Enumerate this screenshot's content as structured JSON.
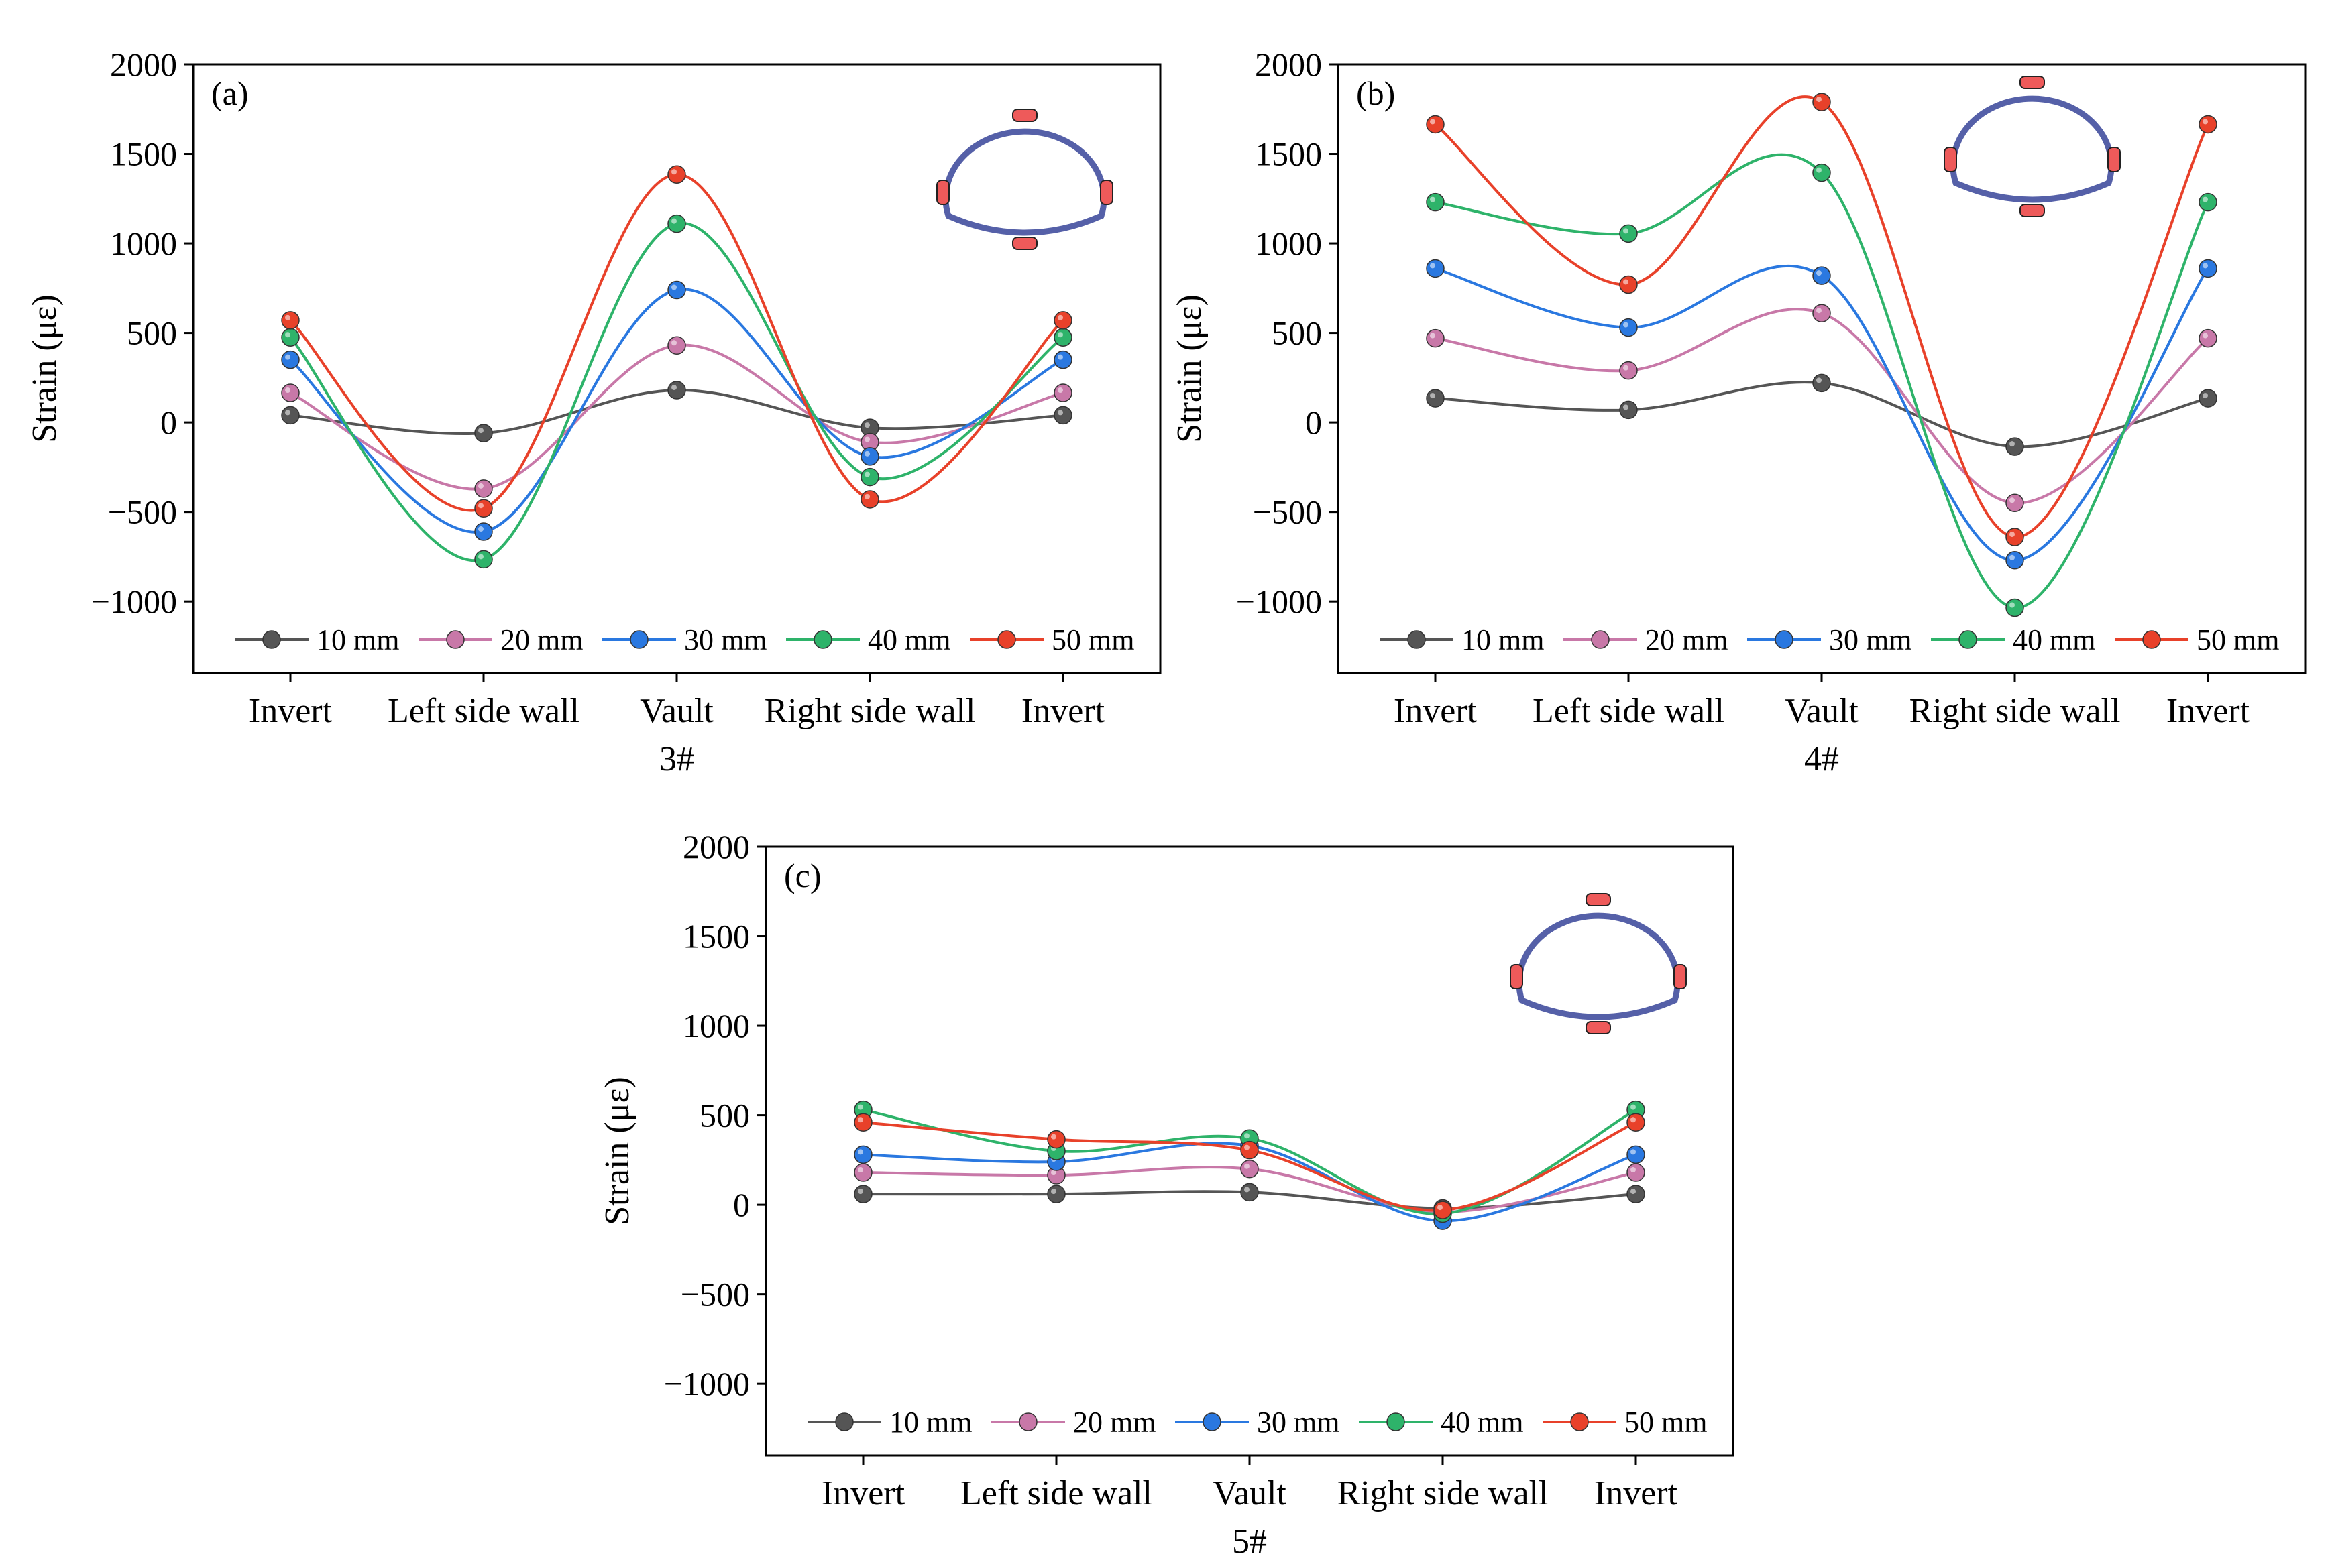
{
  "chart_data": [
    {
      "type": "line",
      "panel_label": "(a)",
      "xlabel": "3#",
      "ylabel": "Strain  (με)",
      "categories": [
        "Invert",
        "Left side wall",
        "Vault",
        "Right side wall",
        "Invert"
      ],
      "ylim": [
        -1400,
        2000
      ],
      "yticks": [
        2000,
        1500,
        1000,
        500,
        0,
        -500,
        -1000
      ],
      "ytick_labels": [
        "2000",
        "1500",
        "1000",
        "500",
        "0",
        "−500",
        "−1000"
      ],
      "grid": false,
      "legend_position": "bottom",
      "series": [
        {
          "name": "10 mm",
          "color": "#555555",
          "values": [
            40,
            -60,
            180,
            -30,
            40
          ]
        },
        {
          "name": "20 mm",
          "color": "#c878a8",
          "values": [
            165,
            -370,
            430,
            -110,
            165
          ]
        },
        {
          "name": "30 mm",
          "color": "#2a78e0",
          "values": [
            350,
            -610,
            740,
            -190,
            350
          ]
        },
        {
          "name": "40 mm",
          "color": "#2eb36a",
          "values": [
            475,
            -765,
            1110,
            -305,
            475
          ]
        },
        {
          "name": "50 mm",
          "color": "#e8412a",
          "values": [
            570,
            -480,
            1385,
            -430,
            570
          ]
        }
      ],
      "inset_icon": "tunnel-cross-section-icon"
    },
    {
      "type": "line",
      "panel_label": "(b)",
      "xlabel": "4#",
      "ylabel": "Strain  (με)",
      "categories": [
        "Invert",
        "Left side wall",
        "Vault",
        "Right side wall",
        "Invert"
      ],
      "ylim": [
        -1400,
        2000
      ],
      "yticks": [
        2000,
        1500,
        1000,
        500,
        0,
        -500,
        -1000
      ],
      "ytick_labels": [
        "2000",
        "1500",
        "1000",
        "500",
        "0",
        "−500",
        "−1000"
      ],
      "grid": false,
      "legend_position": "bottom",
      "series": [
        {
          "name": "10 mm",
          "color": "#555555",
          "values": [
            135,
            70,
            220,
            -135,
            135
          ]
        },
        {
          "name": "20 mm",
          "color": "#c878a8",
          "values": [
            470,
            290,
            610,
            -450,
            470
          ]
        },
        {
          "name": "30 mm",
          "color": "#2a78e0",
          "values": [
            860,
            530,
            820,
            -770,
            860
          ]
        },
        {
          "name": "40 mm",
          "color": "#2eb36a",
          "values": [
            1230,
            1055,
            1395,
            -1035,
            1230
          ]
        },
        {
          "name": "50 mm",
          "color": "#e8412a",
          "values": [
            1665,
            770,
            1790,
            -640,
            1665
          ]
        }
      ],
      "inset_icon": "tunnel-cross-section-icon"
    },
    {
      "type": "line",
      "panel_label": "(c)",
      "xlabel": "5#",
      "ylabel": "Strain  (με)",
      "categories": [
        "Invert",
        "Left side wall",
        "Vault",
        "Right side wall",
        "Invert"
      ],
      "ylim": [
        -1400,
        2000
      ],
      "yticks": [
        2000,
        1500,
        1000,
        500,
        0,
        -500,
        -1000
      ],
      "ytick_labels": [
        "2000",
        "1500",
        "1000",
        "500",
        "0",
        "−500",
        "−1000"
      ],
      "grid": false,
      "legend_position": "bottom",
      "series": [
        {
          "name": "10 mm",
          "color": "#555555",
          "values": [
            60,
            60,
            70,
            -20,
            60
          ]
        },
        {
          "name": "20 mm",
          "color": "#c878a8",
          "values": [
            180,
            165,
            200,
            -40,
            180
          ]
        },
        {
          "name": "30 mm",
          "color": "#2a78e0",
          "values": [
            280,
            240,
            330,
            -90,
            280
          ]
        },
        {
          "name": "40 mm",
          "color": "#2eb36a",
          "values": [
            530,
            300,
            370,
            -50,
            530
          ]
        },
        {
          "name": "50 mm",
          "color": "#e8412a",
          "values": [
            460,
            365,
            305,
            -30,
            460
          ]
        }
      ],
      "inset_icon": "tunnel-cross-section-icon"
    }
  ],
  "inset_colors": {
    "ring": "#5560a8",
    "gauge": "#ee5a5a"
  }
}
